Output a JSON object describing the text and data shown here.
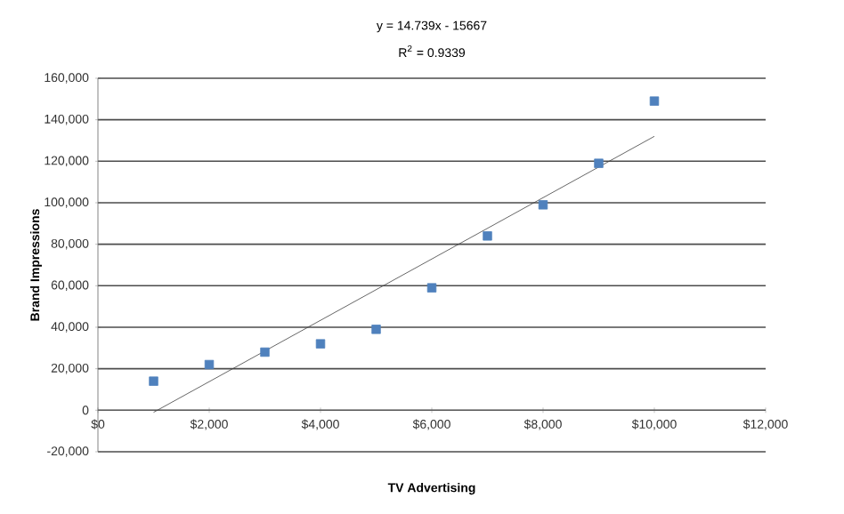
{
  "chart_data": {
    "type": "scatter",
    "xlabel": "TV Advertising",
    "ylabel": "Brand Impressions",
    "annotations": [
      "y = 14.739x - 15667",
      "R$^{2}$ = 0.9339"
    ],
    "series": [
      {
        "color": "#4f81bd",
        "x": [
          1000,
          2000,
          3000,
          4000,
          5000,
          6000,
          7000,
          8000,
          9000,
          10000
        ],
        "values": [
          14000,
          22000,
          28000,
          32000,
          39000,
          59000,
          84000,
          99000,
          119000,
          149000
        ]
      },
      {
        "type": "line",
        "marker": "none",
        "color": "#404040",
        "x": [
          1000,
          10000
        ],
        "values": [
          -1000,
          132000
        ]
      }
    ],
    "marker": "square",
    "grid": "y",
    "xlim": [
      0,
      12000
    ],
    "ylim": [
      -20000,
      160000
    ],
    "xticks": [
      {
        "value": 0,
        "label": "$0"
      },
      {
        "value": 2000,
        "label": "$2,000"
      },
      {
        "value": 4000,
        "label": "$4,000"
      },
      {
        "value": 6000,
        "label": "$6,000"
      },
      {
        "value": 8000,
        "label": "$8,000"
      },
      {
        "value": 10000,
        "label": "$10,000"
      },
      {
        "value": 12000,
        "label": "$12,000"
      }
    ],
    "yticks": [
      {
        "value": -20000,
        "label": "-20,000"
      },
      {
        "value": 0,
        "label": "0"
      },
      {
        "value": 20000,
        "label": "20,000"
      },
      {
        "value": 40000,
        "label": "40,000"
      },
      {
        "value": 60000,
        "label": "60,000"
      },
      {
        "value": 80000,
        "label": "80,000"
      },
      {
        "value": 100000,
        "label": "100,000"
      },
      {
        "value": 120000,
        "label": "120,000"
      },
      {
        "value": 140000,
        "label": "140,000"
      },
      {
        "value": 160000,
        "label": "160,000"
      }
    ]
  }
}
